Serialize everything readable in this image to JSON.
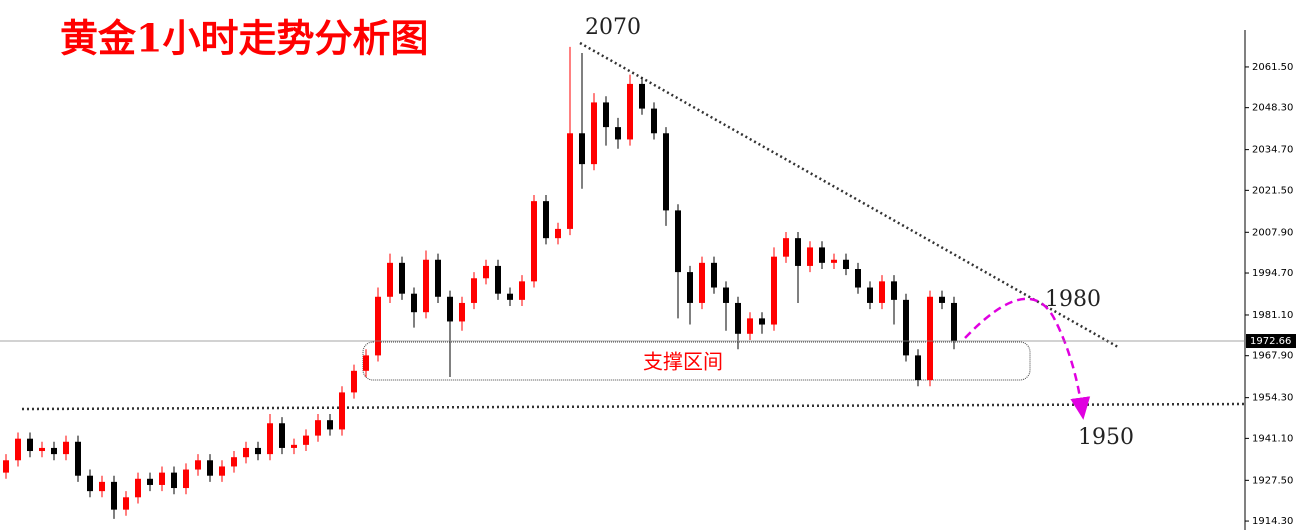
{
  "chart_data": {
    "type": "candlestick",
    "title": "黄金1小时走势分析图",
    "annotations": [
      "2070",
      "1980",
      "1950",
      "支撑区间"
    ],
    "open": [
      1930,
      1934,
      1941,
      1937,
      1938,
      1936,
      1940,
      1929,
      1924,
      1927,
      1918,
      1922,
      1928,
      1926,
      1930,
      1925,
      1931,
      1934,
      1929,
      1932,
      1935,
      1938,
      1936,
      1946,
      1938,
      1939,
      1942,
      1947,
      1944,
      1956,
      1963,
      1968,
      1987,
      1998,
      1988,
      1982,
      1999,
      1987,
      1979,
      1985,
      1993,
      1997,
      1988,
      1986,
      1992,
      2018,
      2006,
      2009,
      2040,
      2030,
      2050,
      2042,
      2038,
      2056,
      2048,
      2040,
      2015,
      1995,
      1985,
      1998,
      1990,
      1985,
      1975,
      1980,
      1978,
      2000,
      2006,
      1997,
      2003,
      1998,
      1999,
      1996,
      1990,
      1985,
      1992,
      1986,
      1968,
      1960,
      1987,
      1985
    ],
    "high": [
      1936,
      1943,
      1943,
      1940,
      1940,
      1942,
      1942,
      1931,
      1929,
      1929,
      1924,
      1930,
      1930,
      1932,
      1932,
      1933,
      1936,
      1936,
      1934,
      1937,
      1940,
      1940,
      1949,
      1948,
      1941,
      1944,
      1949,
      1949,
      1958,
      1965,
      1970,
      1990,
      2001,
      2000,
      1990,
      2002,
      2001,
      1989,
      1987,
      1995,
      1999,
      1999,
      1990,
      1994,
      2020,
      2020,
      2011,
      2068,
      2066,
      2053,
      2052,
      2045,
      2059,
      2058,
      2050,
      2042,
      2017,
      1997,
      2000,
      2000,
      1992,
      1987,
      1982,
      1982,
      2003,
      2008,
      2008,
      2005,
      2005,
      2001,
      2001,
      1998,
      1992,
      1994,
      1994,
      1988,
      1970,
      1989,
      1989,
      1987
    ],
    "low": [
      1928,
      1932,
      1935,
      1935,
      1934,
      1934,
      1927,
      1922,
      1922,
      1915,
      1916,
      1920,
      1924,
      1924,
      1923,
      1923,
      1929,
      1927,
      1927,
      1930,
      1933,
      1934,
      1934,
      1936,
      1936,
      1937,
      1940,
      1942,
      1942,
      1954,
      1961,
      1966,
      1985,
      1986,
      1977,
      1980,
      1985,
      1961,
      1976,
      1983,
      1991,
      1986,
      1984,
      1984,
      1990,
      2004,
      2004,
      2007,
      2022,
      2028,
      2036,
      2035,
      2036,
      2046,
      2038,
      2010,
      1980,
      1978,
      1983,
      1988,
      1976,
      1970,
      1973,
      1975,
      1976,
      1998,
      1985,
      1995,
      1996,
      1996,
      1994,
      1988,
      1983,
      1983,
      1978,
      1966,
      1958,
      1958,
      1983,
      1970
    ],
    "close": [
      1934,
      1941,
      1937,
      1938,
      1936,
      1940,
      1929,
      1924,
      1927,
      1918,
      1922,
      1928,
      1926,
      1930,
      1925,
      1931,
      1934,
      1929,
      1932,
      1935,
      1938,
      1936,
      1946,
      1938,
      1939,
      1942,
      1947,
      1944,
      1956,
      1963,
      1968,
      1987,
      1998,
      1988,
      1982,
      1999,
      1987,
      1979,
      1985,
      1993,
      1997,
      1988,
      1986,
      1992,
      2018,
      2006,
      2009,
      2040,
      2030,
      2050,
      2042,
      2038,
      2056,
      2048,
      2040,
      2015,
      1995,
      1985,
      1998,
      1990,
      1985,
      1975,
      1980,
      1978,
      2000,
      2006,
      1997,
      2003,
      1998,
      1999,
      1996,
      1990,
      1985,
      1992,
      1986,
      1968,
      1960,
      1987,
      1985,
      1972.66
    ],
    "up_color": "#ff0000",
    "down_color": "#000000",
    "last_price": 1972.66,
    "ylim": [
      1911.4,
      2083.2
    ],
    "yticks": [
      {
        "value": 2061.5,
        "label": "2061.50"
      },
      {
        "value": 2048.3,
        "label": "2048.30"
      },
      {
        "value": 2034.7,
        "label": "2034.70"
      },
      {
        "value": 2021.5,
        "label": "2021.50"
      },
      {
        "value": 2007.9,
        "label": "2007.90"
      },
      {
        "value": 1994.7,
        "label": "1994.70"
      },
      {
        "value": 1981.1,
        "label": "1981.10"
      },
      {
        "value": 1967.9,
        "label": "1967.90"
      },
      {
        "value": 1954.3,
        "label": "1954.30"
      },
      {
        "value": 1941.1,
        "label": "1941.10"
      },
      {
        "value": 1927.5,
        "label": "1927.50"
      },
      {
        "value": 1914.3,
        "label": "1914.30"
      }
    ]
  }
}
